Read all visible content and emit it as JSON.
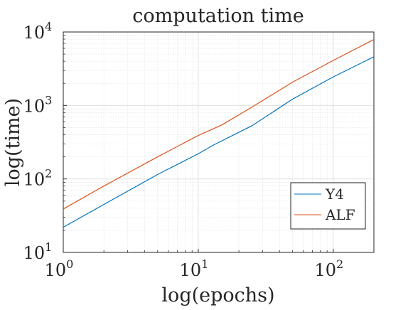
{
  "chart_data": {
    "type": "line",
    "title": "computation time",
    "xlabel": "log(epochs)",
    "ylabel": "log(time)",
    "xscale": "log",
    "yscale": "log",
    "xlim": [
      1,
      200
    ],
    "ylim": [
      10,
      10000
    ],
    "grid": true,
    "minor_grid": true,
    "legend_position": "bottom-right",
    "x_ticks": [
      {
        "base": "10",
        "exp": "0"
      },
      {
        "base": "10",
        "exp": "1"
      },
      {
        "base": "10",
        "exp": "2"
      }
    ],
    "y_ticks": [
      {
        "base": "10",
        "exp": "1"
      },
      {
        "base": "10",
        "exp": "2"
      },
      {
        "base": "10",
        "exp": "3"
      },
      {
        "base": "10",
        "exp": "4"
      }
    ],
    "series": [
      {
        "name": "Y4",
        "color": "#0072BD",
        "x": [
          1,
          2,
          5,
          10,
          13,
          25,
          50,
          100,
          200
        ],
        "y": [
          22,
          45,
          115,
          220,
          290,
          530,
          1220,
          2450,
          4600
        ]
      },
      {
        "name": "ALF",
        "color": "#D95319",
        "x": [
          1,
          2,
          5,
          10,
          15,
          25,
          50,
          100,
          200
        ],
        "y": [
          39,
          80,
          200,
          390,
          545,
          950,
          2080,
          4100,
          7900
        ]
      }
    ]
  }
}
